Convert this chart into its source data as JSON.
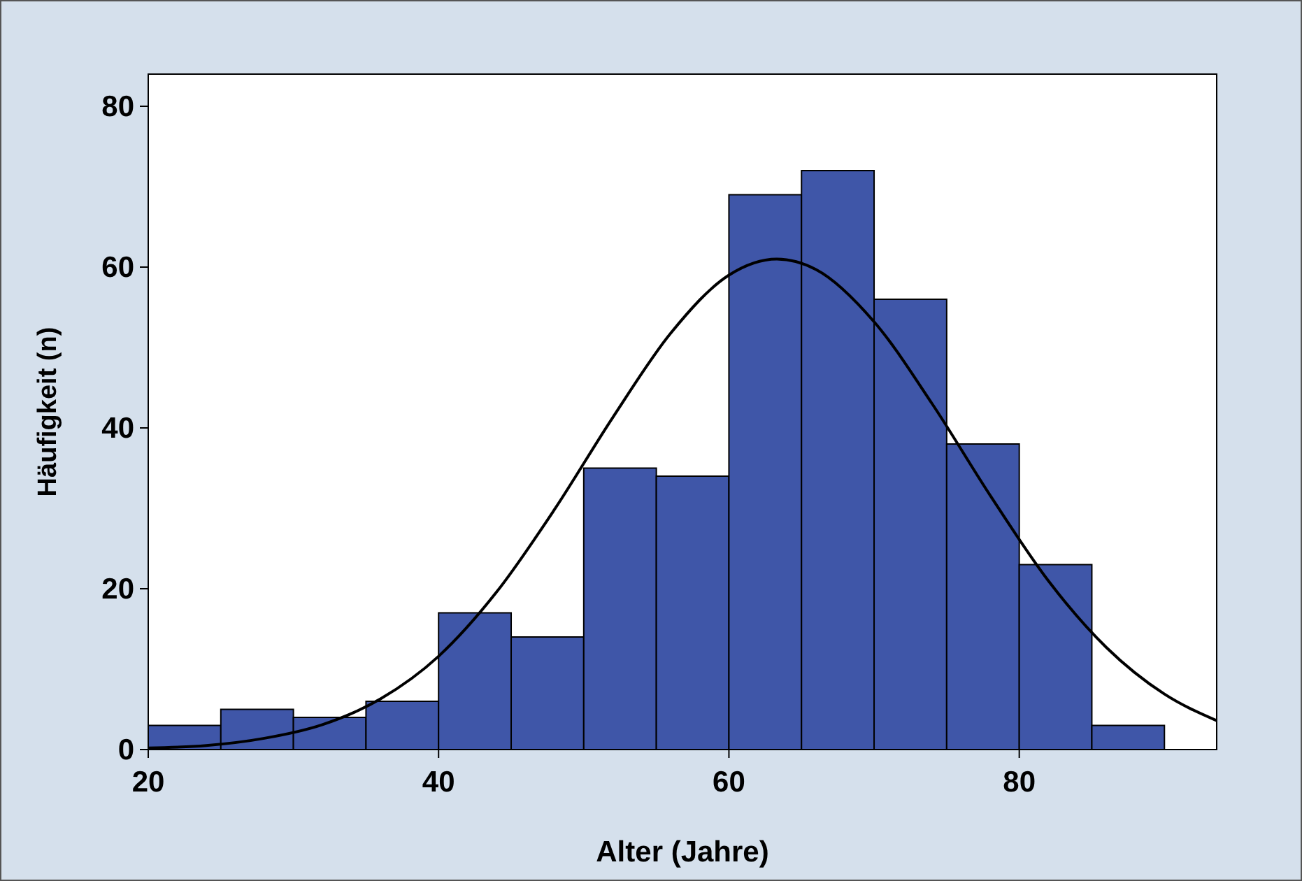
{
  "chart_data": {
    "type": "histogram",
    "xlabel": "Alter (Jahre)",
    "ylabel": "Häufigkeit (n)",
    "bins": [
      20,
      25,
      30,
      35,
      40,
      45,
      50,
      55,
      60,
      65,
      70,
      75,
      80,
      85,
      90
    ],
    "values": [
      3,
      5,
      4,
      6,
      17,
      14,
      35,
      34,
      69,
      72,
      56,
      38,
      23,
      3
    ],
    "color": "#3f56a8",
    "series": [
      {
        "type": "line",
        "color": "#000000",
        "x": [
          20,
          24,
          28,
          32,
          36,
          40,
          44,
          48,
          52,
          56,
          60,
          63.3,
          66,
          70,
          74,
          78,
          82,
          86,
          90,
          93.6
        ],
        "values": [
          0.2,
          0.5,
          1.4,
          3.1,
          6.3,
          11.6,
          19.6,
          29.9,
          41.3,
          51.8,
          59,
          61,
          59.7,
          53.2,
          43,
          31.6,
          21,
          12.7,
          6.9,
          3.6
        ]
      }
    ],
    "xlim": [
      20,
      93.6
    ],
    "xticks": [
      20,
      40,
      60,
      80
    ],
    "ylim": [
      0,
      84
    ],
    "yticks": [
      0,
      20,
      40,
      60,
      80
    ],
    "grid": false
  }
}
